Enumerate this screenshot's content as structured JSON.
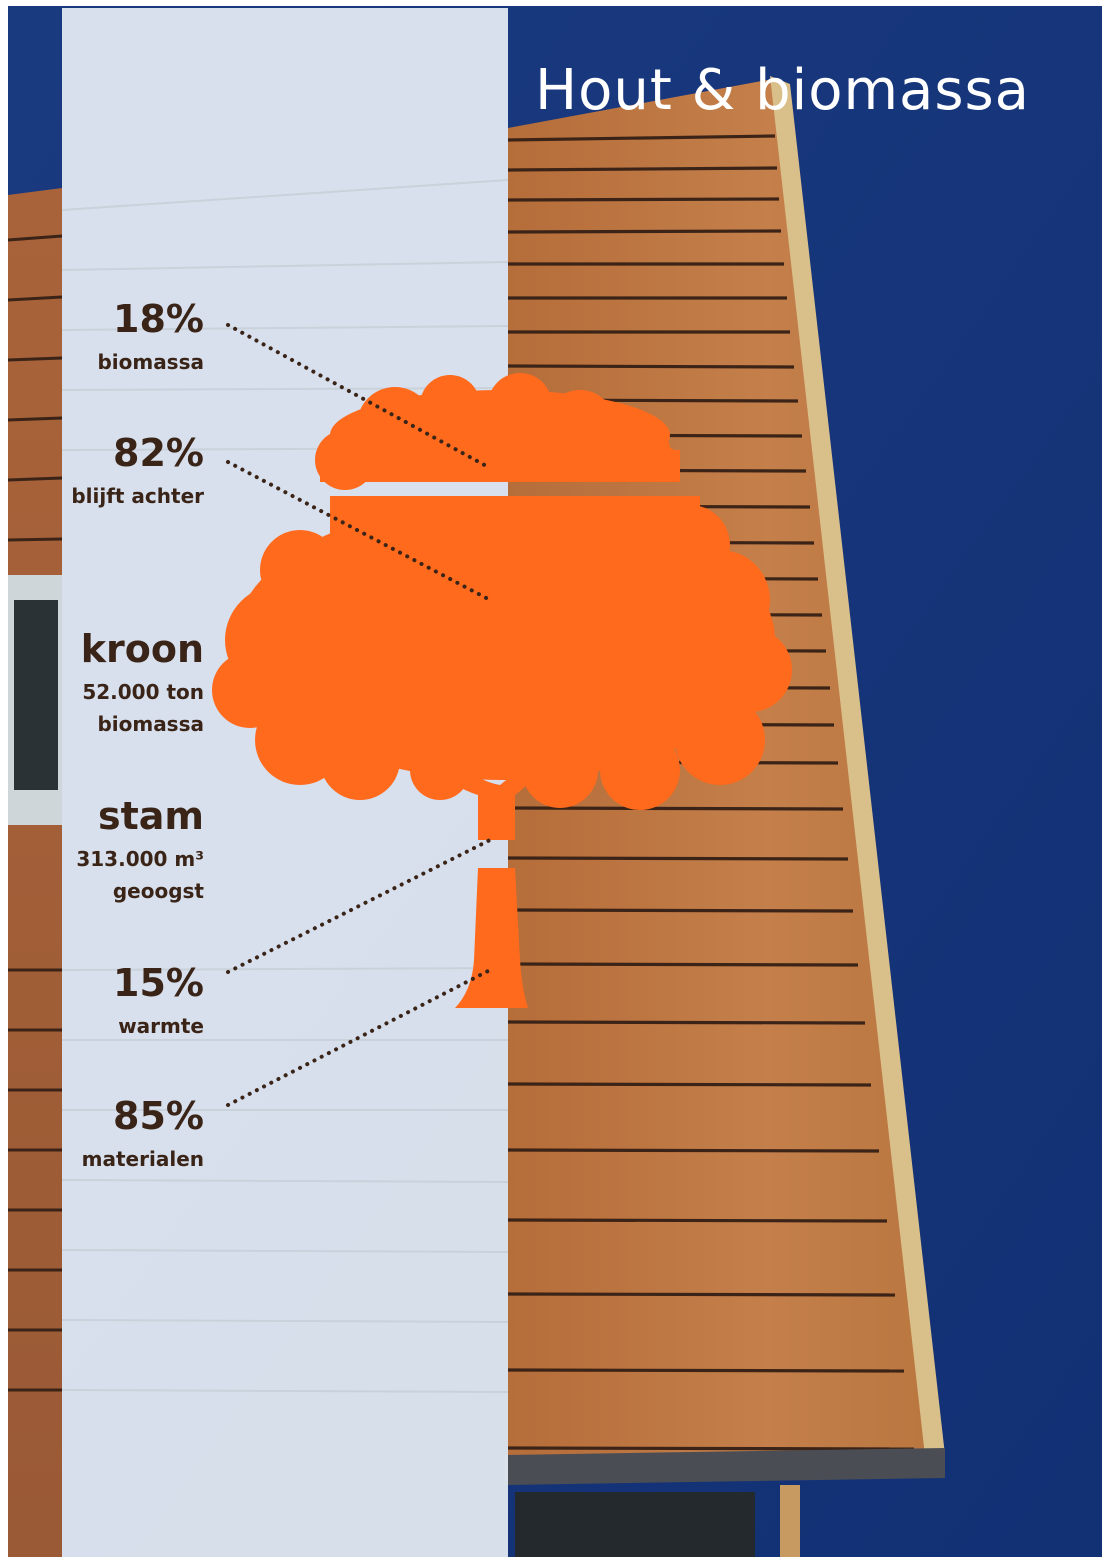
{
  "title": "Hout & biomassa",
  "colors": {
    "sky": "#1e3f86",
    "sky_dark": "#142e6a",
    "wood": "#b06a38",
    "wood_light": "#c98650",
    "plank_line": "#3b2417",
    "pale_panel": "#e8eef4",
    "tree": "#ff6a1c",
    "label_text": "#3a2418"
  },
  "labels": {
    "crown_top": {
      "value": "18%",
      "caption": "biomassa"
    },
    "crown_bottom": {
      "value": "82%",
      "caption": "blijft achter"
    },
    "crown": {
      "name": "kroon",
      "line1": "52.000 ton",
      "line2": "biomassa"
    },
    "trunk": {
      "name": "stam",
      "line1": "313.000 m³",
      "line2": "geoogst"
    },
    "trunk_top": {
      "value": "15%",
      "caption": "warmte"
    },
    "trunk_bottom": {
      "value": "85%",
      "caption": "materialen"
    }
  },
  "icons": [
    "tree-icon",
    "dotted-leader-lines"
  ]
}
